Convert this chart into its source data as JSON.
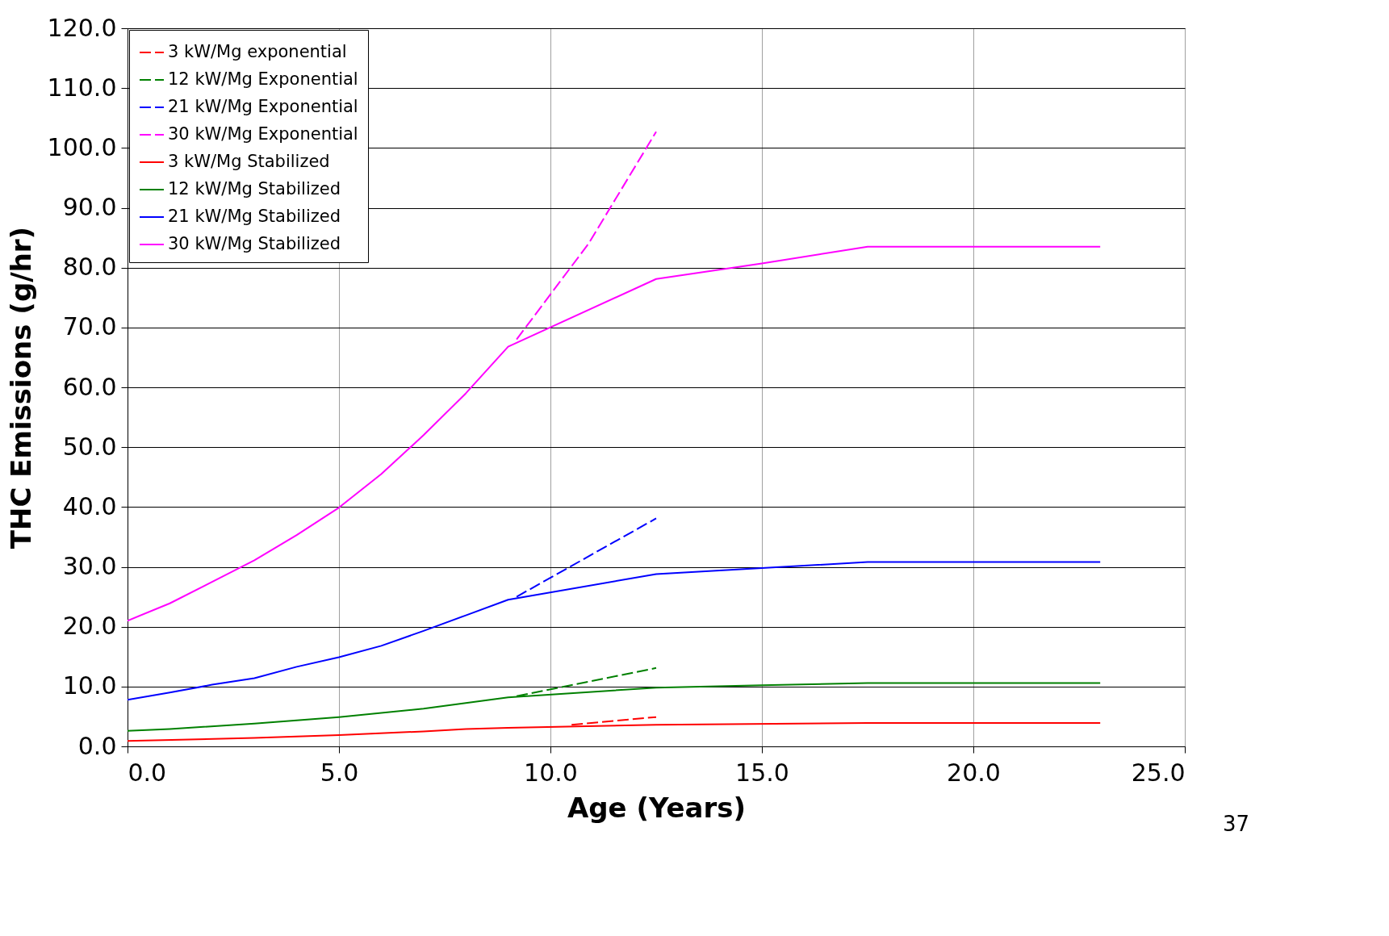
{
  "chart_data": {
    "type": "line",
    "xlabel": "Age (Years)",
    "ylabel": "THC Emissions (g/hr)",
    "xlim": [
      0,
      25
    ],
    "xticks": [
      {
        "value": 0,
        "label": "0.0"
      },
      {
        "value": 5,
        "label": "5.0"
      },
      {
        "value": 10,
        "label": "10.0"
      },
      {
        "value": 15,
        "label": "15.0"
      },
      {
        "value": 20,
        "label": "20.0"
      },
      {
        "value": 25,
        "label": "25.0"
      }
    ],
    "ylim": [
      0,
      120
    ],
    "yticks": [
      {
        "value": 0,
        "label": "0.0"
      },
      {
        "value": 10,
        "label": "10.0"
      },
      {
        "value": 20,
        "label": "20.0"
      },
      {
        "value": 30,
        "label": "30.0"
      },
      {
        "value": 40,
        "label": "40.0"
      },
      {
        "value": 50,
        "label": "50.0"
      },
      {
        "value": 60,
        "label": "60.0"
      },
      {
        "value": 70,
        "label": "70.0"
      },
      {
        "value": 80,
        "label": "80.0"
      },
      {
        "value": 90,
        "label": "90.0"
      },
      {
        "value": 100,
        "label": "100.0"
      },
      {
        "value": 110,
        "label": "110.0"
      },
      {
        "value": 120,
        "label": "120.0"
      }
    ],
    "grid": true,
    "legend": "top left",
    "marker": "none",
    "annotations": [
      "37"
    ],
    "series": [
      {
        "name": "3 kW/Mg exponential",
        "color": "#ff0000",
        "line_style": "dashed",
        "x": [
          10.5,
          12.5
        ],
        "values": [
          3.6,
          4.9
        ]
      },
      {
        "name": "12 kW/Mg Exponential",
        "color": "#008000",
        "line_style": "dashed",
        "x": [
          9.2,
          12.5
        ],
        "values": [
          8.4,
          13.1
        ]
      },
      {
        "name": "21 kW/Mg Exponential",
        "color": "#0000ff",
        "line_style": "dashed",
        "x": [
          9.2,
          12.5
        ],
        "values": [
          25,
          38.1
        ]
      },
      {
        "name": "30 kW/Mg Exponential",
        "color": "#ff00ff",
        "line_style": "dashed",
        "x": [
          9.2,
          10.9,
          12.5
        ],
        "values": [
          68,
          84,
          102.7
        ]
      },
      {
        "name": "3 kW/Mg Stabilized",
        "color": "#ff0000",
        "line_style": "solid",
        "x": [
          0,
          3,
          5,
          7,
          8,
          9,
          12.5,
          17.5,
          23
        ],
        "values": [
          0.9,
          1.4,
          1.9,
          2.5,
          2.9,
          3.1,
          3.6,
          3.9,
          3.9
        ]
      },
      {
        "name": "12 kW/Mg Stabilized",
        "color": "#008000",
        "line_style": "solid",
        "x": [
          0,
          1,
          3,
          5,
          7,
          9,
          12.5,
          15,
          17.5,
          23
        ],
        "values": [
          2.6,
          2.9,
          3.8,
          4.9,
          6.3,
          8.2,
          9.8,
          10.2,
          10.6,
          10.6
        ]
      },
      {
        "name": "21 kW/Mg Stabilized",
        "color": "#0000ff",
        "line_style": "solid",
        "x": [
          0,
          1,
          2,
          3,
          4,
          5,
          6,
          7,
          8,
          9,
          12.5,
          15,
          17.5,
          23
        ],
        "values": [
          7.8,
          9,
          10.3,
          11.4,
          13.3,
          14.9,
          16.8,
          19.3,
          21.9,
          24.5,
          28.8,
          29.8,
          30.8,
          30.8
        ]
      },
      {
        "name": "30 kW/Mg Stabilized",
        "color": "#ff00ff",
        "line_style": "solid",
        "x": [
          0,
          1,
          2,
          3,
          4,
          5,
          6,
          7,
          8,
          9,
          12.5,
          15,
          17.5,
          23
        ],
        "values": [
          21,
          23.9,
          27.5,
          31.1,
          35.3,
          39.9,
          45.5,
          52,
          59,
          66.8,
          78.1,
          80.7,
          83.5,
          83.5
        ]
      }
    ]
  }
}
